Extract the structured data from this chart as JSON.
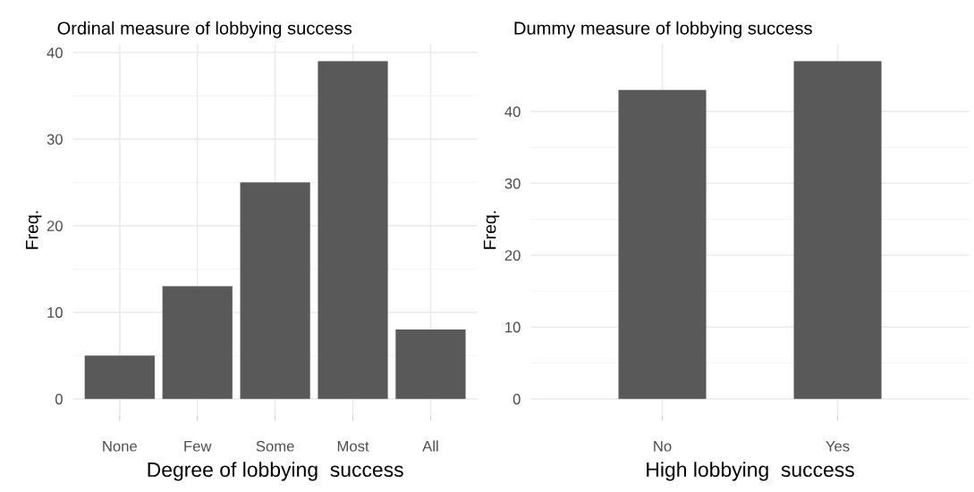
{
  "chart_data": [
    {
      "type": "bar",
      "title": "Ordinal measure of lobbying success",
      "xlabel": "Degree of lobbying  success",
      "ylabel": "Freq.",
      "categories": [
        "None",
        "Few",
        "Some",
        "Most",
        "All"
      ],
      "values": [
        5,
        13,
        25,
        39,
        8
      ],
      "color": "#595959",
      "ylim": [
        -1.95,
        40.95
      ],
      "yticks": [
        0,
        10,
        20,
        30,
        40
      ],
      "grid": true
    },
    {
      "type": "bar",
      "title": "Dummy measure of lobbying success",
      "xlabel": "High lobbying  success",
      "ylabel": "Freq.",
      "categories": [
        "No",
        "Yes"
      ],
      "values": [
        43,
        47
      ],
      "color": "#595959",
      "ylim": [
        -2.35,
        49.35
      ],
      "yticks": [
        0,
        10,
        20,
        30,
        40
      ],
      "grid": true
    }
  ]
}
